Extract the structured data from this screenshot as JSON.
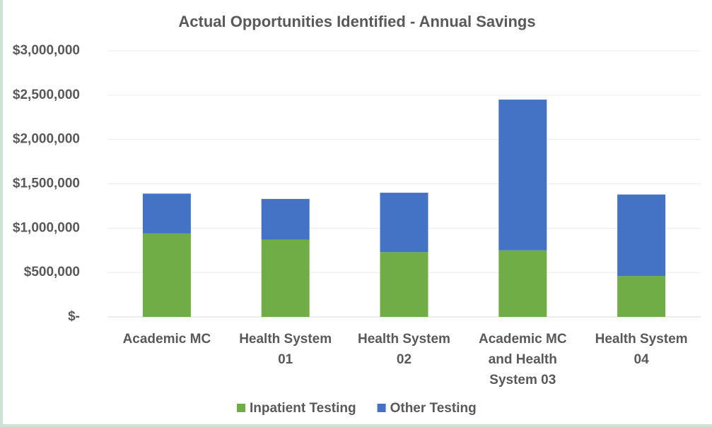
{
  "chart_data": {
    "type": "stacked_bar",
    "title": "Actual Opportunities Identified - Annual Savings",
    "categories": [
      "Academic MC",
      "Health System 01",
      "Health System 02",
      "Academic MC and Health System 03",
      "Health System 04"
    ],
    "series": [
      {
        "name": "Inpatient Testing",
        "color": "#70ad47",
        "values": [
          940000,
          870000,
          730000,
          750000,
          460000
        ]
      },
      {
        "name": "Other Testing",
        "color": "#4472c4",
        "values": [
          450000,
          460000,
          670000,
          1700000,
          920000
        ]
      }
    ],
    "ylim": [
      0,
      3000000
    ],
    "yticks": [
      {
        "value": 0,
        "label": "$-"
      },
      {
        "value": 500000,
        "label": "$500,000"
      },
      {
        "value": 1000000,
        "label": "$1,000,000"
      },
      {
        "value": 1500000,
        "label": "$1,500,000"
      },
      {
        "value": 2000000,
        "label": "$2,000,000"
      },
      {
        "value": 2500000,
        "label": "$2,500,000"
      },
      {
        "value": 3000000,
        "label": "$3,000,000"
      }
    ],
    "grid": true,
    "legend": "bottom"
  }
}
